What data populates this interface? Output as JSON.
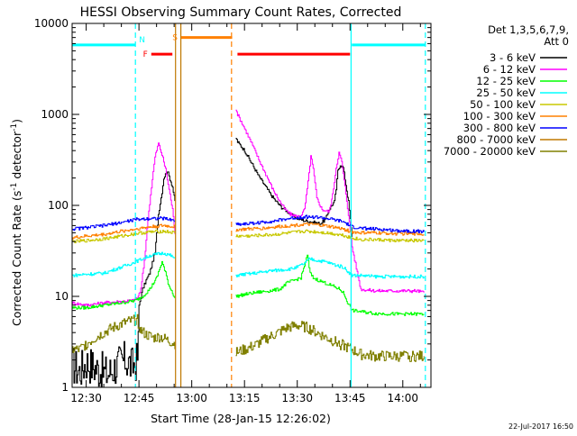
{
  "chart_data": {
    "type": "line",
    "title": "HESSI Observing Summary Count Rates, Corrected",
    "xlabel": "Start Time (28-Jan-15 12:26:02)",
    "ylabel_main": "Corrected Count Rate (s",
    "ylabel_sup1": "-1",
    "ylabel_mid": " detector",
    "ylabel_sup2": "-1",
    "ylabel_end": ")",
    "yscale": "log",
    "ylim": [
      1,
      10000
    ],
    "xlim_minutes": [
      26.0,
      128.0
    ],
    "x_tick_labels": [
      "12:30",
      "12:45",
      "13:00",
      "13:15",
      "13:30",
      "13:45",
      "14:00"
    ],
    "x_tick_minutes": [
      30,
      45,
      60,
      75,
      90,
      105,
      120
    ],
    "y_tick_labels": [
      "1",
      "10",
      "100",
      "1000",
      "10000"
    ],
    "y_tick_values": [
      1,
      10,
      100,
      1000,
      10000
    ],
    "legend_title_1": "Det 1,3,5,6,7,9,",
    "legend_title_2": "Att 0",
    "legend_position": "right",
    "series": [
      {
        "name": "3 - 6 keV",
        "color": "#000000",
        "x": [
          26,
          28,
          30,
          33,
          36,
          39,
          41,
          43,
          44.5,
          45,
          46,
          47,
          48,
          49.5,
          50.5,
          51.5,
          52,
          53,
          54.5,
          55.2,
          72.5,
          73,
          75,
          77,
          79,
          81,
          82.5,
          84,
          85.5,
          86.5,
          88,
          90,
          92,
          94,
          95.5,
          96.5,
          98,
          99,
          100.5,
          101,
          101.5,
          102.2,
          103,
          104.5,
          105.5
        ],
        "y": [
          1.8,
          1.5,
          1.9,
          1.6,
          1.4,
          1.8,
          2.0,
          1.7,
          2.0,
          8,
          12,
          15,
          18,
          30,
          80,
          140,
          200,
          240,
          160,
          110,
          550,
          500,
          400,
          290,
          210,
          160,
          130,
          110,
          95,
          90,
          80,
          72,
          68,
          66,
          64,
          63,
          70,
          90,
          110,
          150,
          240,
          280,
          260,
          110,
          45
        ]
      },
      {
        "name": "6 - 12 keV",
        "color": "#ff00ff",
        "x": [
          26,
          30,
          35,
          40,
          43,
          44.5,
          45.5,
          46.5,
          47.5,
          48.5,
          49.5,
          50.5,
          51.5,
          52.5,
          53.5,
          54.5,
          55.2,
          72.5,
          73,
          75,
          77,
          79,
          81,
          83,
          85,
          86.5,
          88,
          90,
          91,
          92,
          93,
          93.8,
          94.5,
          95.5,
          97,
          99,
          100,
          101,
          101.8,
          102.6,
          103.5,
          104.5,
          105.5,
          108,
          112,
          118,
          124,
          126
        ],
        "y": [
          8.5,
          8.0,
          8.5,
          8.8,
          9.0,
          9.5,
          12,
          25,
          70,
          160,
          340,
          480,
          360,
          250,
          150,
          90,
          50,
          1150,
          1000,
          700,
          480,
          320,
          220,
          150,
          110,
          90,
          80,
          75,
          78,
          90,
          180,
          350,
          250,
          120,
          90,
          85,
          130,
          260,
          380,
          300,
          160,
          80,
          35,
          12,
          11.5,
          11.5,
          11.5,
          11
        ]
      },
      {
        "name": "12 - 25 keV",
        "color": "#00ff00",
        "x": [
          26,
          30,
          35,
          40,
          44,
          46,
          48,
          50,
          51.5,
          52.5,
          53.5,
          54.5,
          55.2,
          72.5,
          75,
          78,
          82,
          85,
          87,
          89,
          91,
          92,
          92.8,
          93.6,
          94.5,
          96,
          98,
          100,
          102,
          103,
          104,
          105.5,
          108,
          112,
          118,
          124,
          126
        ],
        "y": [
          7.5,
          7.5,
          8.0,
          8.5,
          9,
          10,
          12,
          16,
          24,
          18,
          13,
          11,
          9.5,
          10,
          10.5,
          11,
          11.5,
          12,
          14,
          15,
          16,
          22,
          28,
          18,
          16,
          15,
          14,
          13,
          12,
          11,
          9,
          7,
          6.8,
          6.5,
          6.4,
          6.4,
          6.4
        ]
      },
      {
        "name": "25 - 50 keV",
        "color": "#00ffff",
        "x": [
          26,
          30,
          35,
          40,
          44,
          46,
          48,
          50,
          52,
          54,
          55.2,
          72.5,
          75,
          78,
          82,
          85,
          88,
          90,
          92,
          93.5,
          95,
          98,
          101,
          103,
          105.5,
          108,
          112,
          118,
          124,
          126
        ],
        "y": [
          17,
          17.5,
          18,
          21,
          24,
          26,
          28,
          29,
          30,
          28,
          26,
          17,
          17.5,
          18,
          19,
          19.5,
          20,
          21,
          23,
          26,
          25,
          24,
          22,
          21,
          17,
          17,
          16.5,
          16.5,
          16.5,
          16.5
        ]
      },
      {
        "name": "50 - 100 keV",
        "color": "#c8c800",
        "x": [
          26,
          30,
          35,
          40,
          44,
          48,
          52,
          55.2,
          72.5,
          76,
          80,
          84,
          88,
          92,
          96,
          100,
          103,
          105.5,
          108,
          112,
          118,
          124,
          126
        ],
        "y": [
          40,
          41,
          43,
          46,
          49,
          51,
          52,
          50,
          46,
          46,
          47,
          48,
          50,
          52,
          51,
          49,
          47,
          44,
          42,
          42,
          41,
          41,
          41
        ]
      },
      {
        "name": "100 - 300 keV",
        "color": "#ff8000",
        "x": [
          26,
          30,
          35,
          40,
          44,
          48,
          52,
          55.2,
          72.5,
          76,
          80,
          84,
          88,
          92,
          96,
          100,
          103,
          105.5,
          108,
          112,
          118,
          124,
          126
        ],
        "y": [
          44,
          46,
          48,
          52,
          55,
          58,
          60,
          58,
          54,
          55,
          56,
          58,
          60,
          62,
          61,
          58,
          55,
          51,
          50,
          50,
          49,
          49,
          48
        ]
      },
      {
        "name": "300 - 800 keV",
        "color": "#0000ff",
        "x": [
          26,
          30,
          35,
          40,
          44,
          48,
          52,
          55.2,
          72.5,
          76,
          80,
          84,
          88,
          92,
          96,
          100,
          103,
          105.5,
          108,
          112,
          118,
          124,
          126
        ],
        "y": [
          55,
          57,
          60,
          65,
          70,
          72,
          72,
          68,
          62,
          63,
          65,
          68,
          72,
          75,
          74,
          70,
          66,
          58,
          56,
          55,
          53,
          52,
          51
        ]
      },
      {
        "name": "800 - 7000 keV",
        "color": "#c07800",
        "x": [],
        "y": []
      },
      {
        "name": "7000 - 20000 keV",
        "color": "#808000",
        "x": [
          26,
          28,
          30,
          33,
          36,
          39,
          42,
          44.5,
          45.5,
          47,
          49,
          51,
          53,
          55.2,
          72.5,
          75,
          78,
          81,
          84,
          87,
          90,
          93,
          96,
          99,
          102,
          105.5,
          108,
          112,
          118,
          124,
          126
        ],
        "y": [
          2.6,
          2.6,
          3.0,
          3.6,
          4.2,
          4.8,
          5.3,
          5.5,
          4.2,
          3.8,
          3.5,
          3.6,
          3.3,
          3.0,
          2.4,
          2.6,
          2.9,
          3.4,
          3.9,
          4.5,
          4.8,
          4.5,
          3.9,
          3.4,
          3.0,
          2.6,
          2.3,
          2.2,
          2.2,
          2.2,
          2.2
        ]
      }
    ],
    "flag_bars": [
      {
        "label": "",
        "color": "#00ffff",
        "x_start": 26,
        "x_end": 44.0,
        "y": 5800
      },
      {
        "label": "N",
        "color": "#00ffff",
        "x_start": 44.0,
        "x_end": 44.0,
        "y": 6600
      },
      {
        "label": "F",
        "color": "#ff0000",
        "x_start": 48.5,
        "x_end": 54.5,
        "y": 4600
      },
      {
        "label": "S",
        "color": "#ff8000",
        "x_start": 57.0,
        "x_end": 71.5,
        "y": 7000
      },
      {
        "label": "",
        "color": "#ff0000",
        "x_start": 73.0,
        "x_end": 105.0,
        "y": 4600
      },
      {
        "label": "",
        "color": "#00ffff",
        "x_start": 105.5,
        "x_end": 126.5,
        "y": 5800
      }
    ],
    "vertical_markers": [
      {
        "color": "#00ffff",
        "style": "dashed",
        "x": 44.0
      },
      {
        "color": "#00ffff",
        "style": "solid",
        "x": 105.3
      },
      {
        "color": "#00ffff",
        "style": "dashed",
        "x": 126.4
      },
      {
        "color": "#ff8000",
        "style": "dashed",
        "x": 71.3
      },
      {
        "color": "#c07800",
        "style": "solid",
        "x": 55.4
      },
      {
        "color": "#c07800",
        "style": "solid",
        "x": 56.9
      }
    ]
  },
  "footer_stamp": "22-Jul-2017 16:50"
}
